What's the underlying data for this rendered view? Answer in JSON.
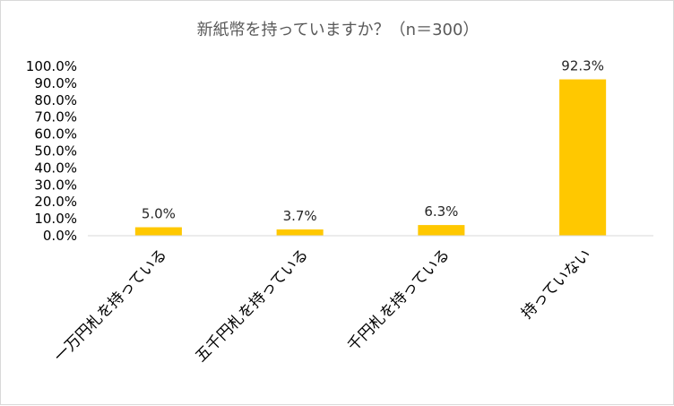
{
  "chart_data": {
    "type": "bar",
    "title": "新紙幣を持っていますか？（n＝300）",
    "categories": [
      "一万円札を持っている",
      "五千円札を持っている",
      "千円札を持っている",
      "持っていない"
    ],
    "values": [
      5.0,
      3.7,
      6.3,
      92.3
    ],
    "data_labels": [
      "5.0%",
      "3.7%",
      "6.3%",
      "92.3%"
    ],
    "ylim": [
      0,
      100
    ],
    "yticks": [
      "0.0%",
      "10.0%",
      "20.0%",
      "30.0%",
      "40.0%",
      "50.0%",
      "60.0%",
      "70.0%",
      "80.0%",
      "90.0%",
      "100.0%"
    ],
    "xlabel": "",
    "ylabel": "",
    "grid": false,
    "legend": "none",
    "colors": {
      "bar": "#FFC800",
      "axis": "#d9d9d9",
      "title": "#595959"
    }
  }
}
